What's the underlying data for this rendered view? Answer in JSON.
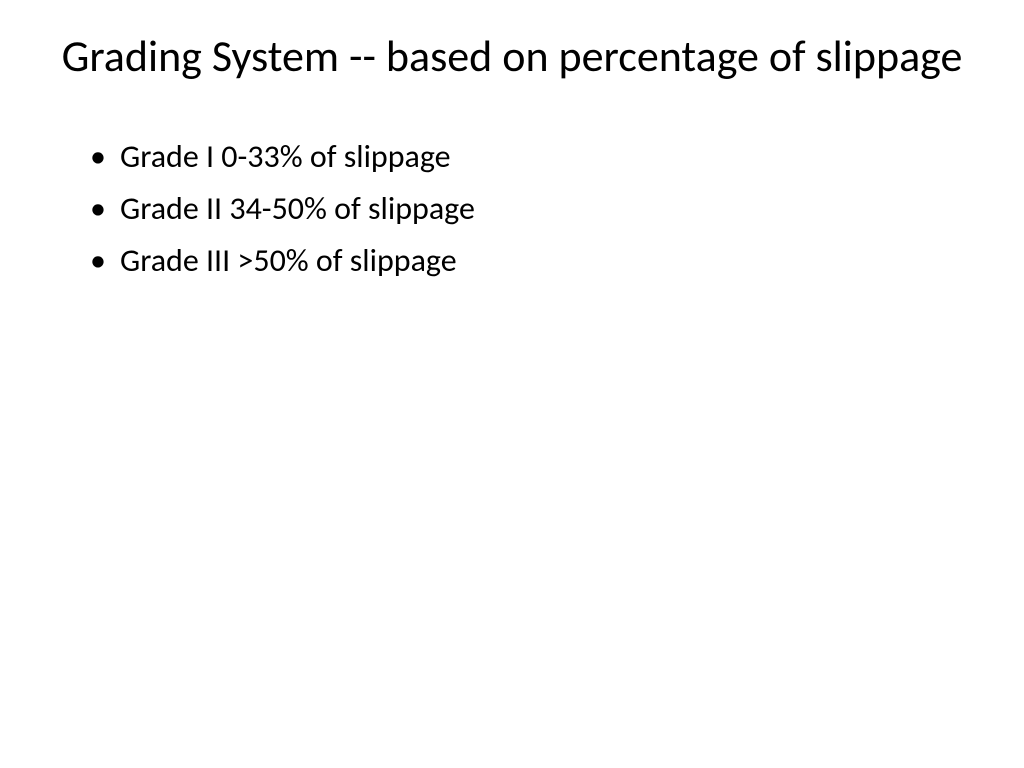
{
  "slide": {
    "title": "Grading System -- based on percentage of slippage",
    "bullets": [
      "Grade I   0-33% of slippage",
      "Grade II  34-50% of slippage",
      "Grade III >50% of slippage"
    ]
  },
  "styling": {
    "background_color": "#ffffff",
    "text_color": "#000000",
    "title_fontsize": 44,
    "title_fontweight": 400,
    "bullet_fontsize": 32,
    "font_family": "Calibri"
  }
}
